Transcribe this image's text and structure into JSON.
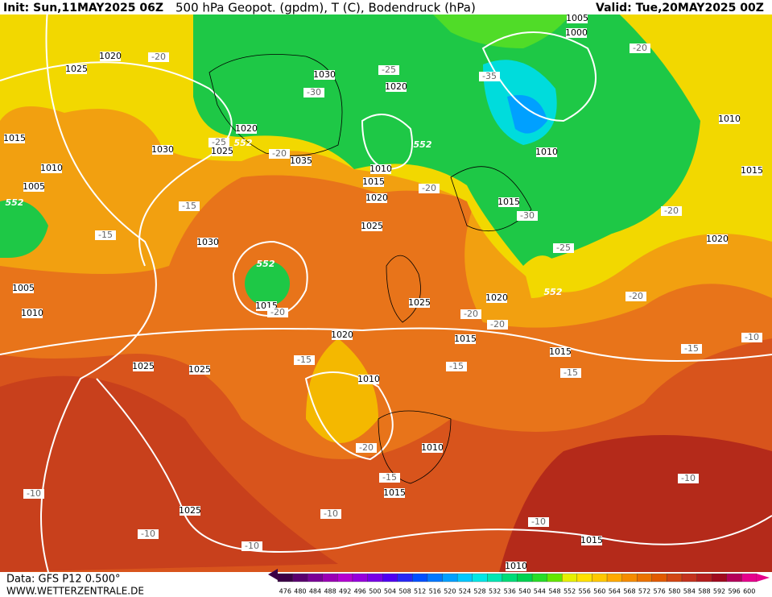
{
  "header": {
    "init": "Init: Sun,11MAY2025 06Z",
    "title": "500 hPa Geopot. (gpdm), T (C), Bodendruck (hPa)",
    "valid": "Valid: Tue,20MAY2025 00Z"
  },
  "footer": {
    "data": "Data: GFS P12 0.500°",
    "site": "WWW.WETTERZENTRALE.DE"
  },
  "colorbar": {
    "labels": [
      476,
      480,
      484,
      488,
      492,
      496,
      500,
      504,
      508,
      512,
      516,
      520,
      524,
      528,
      532,
      536,
      540,
      544,
      548,
      552,
      556,
      560,
      564,
      568,
      572,
      576,
      580,
      584,
      588,
      592,
      596,
      600
    ],
    "colors": [
      "#3c0046",
      "#5a006e",
      "#7a0096",
      "#9a00b4",
      "#b400d2",
      "#9600dc",
      "#7800e6",
      "#5000f0",
      "#2828f5",
      "#0050ff",
      "#0078ff",
      "#00a0ff",
      "#00c8ff",
      "#00e6e6",
      "#00e6b4",
      "#00dc78",
      "#00d250",
      "#28dc28",
      "#64e600",
      "#e6f000",
      "#ffe100",
      "#ffc800",
      "#ffaa00",
      "#f58c00",
      "#eb7300",
      "#e15a00",
      "#d24614",
      "#c3321e",
      "#b41e1e",
      "#a00a1e",
      "#b4005a",
      "#e6008c"
    ]
  },
  "map_labels": [
    "1020",
    "1025",
    "-20",
    "1030",
    "-25",
    "1020",
    "-30",
    "-35",
    "1005",
    "1000",
    "-20",
    "1010",
    "1020",
    "-25",
    "552",
    "1025",
    "1030",
    "-20",
    "1035",
    "552",
    "1010",
    "1010",
    "1015",
    "1015",
    "-20",
    "1020",
    "1015",
    "-30",
    "-20",
    "1025",
    "-15",
    "-15",
    "1030",
    "-25",
    "1020",
    "552",
    "1015",
    "-20",
    "552",
    "1020",
    "-20",
    "1025",
    "-20",
    "-20",
    "1020",
    "1015",
    "1015",
    "-10",
    "-15",
    "-15",
    "-15",
    "-15",
    "1025",
    "1025",
    "1010",
    "-20",
    "1010",
    "-15",
    "1015",
    "-10",
    "1025",
    "-10",
    "-10",
    "-10",
    "-10",
    "1015",
    "1010",
    "-10",
    "1010",
    "1005",
    "1010",
    "1005",
    "552",
    "1015"
  ]
}
